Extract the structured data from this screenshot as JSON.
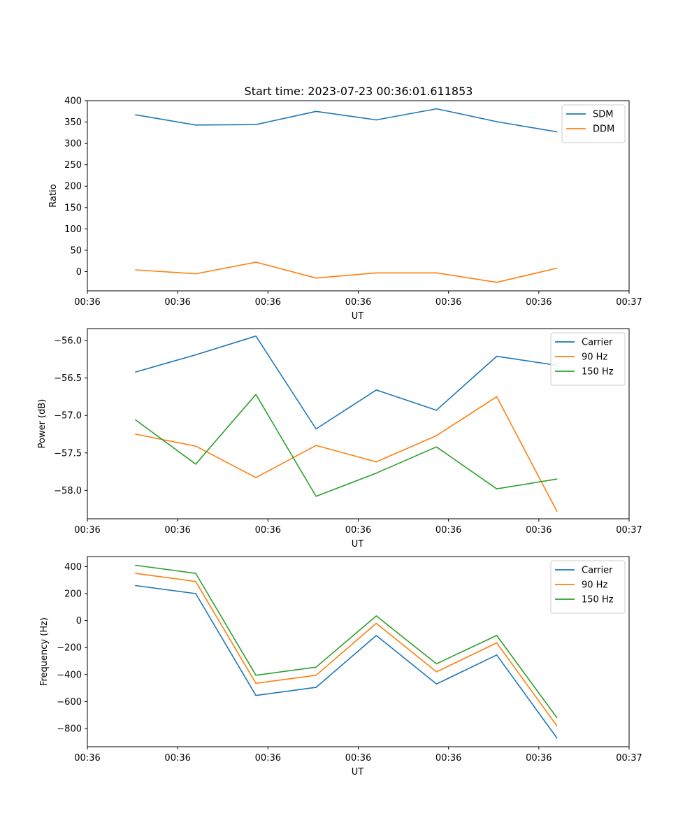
{
  "figure_title": "Start time: 2023-07-23 00:36:01.611853",
  "chart_data": [
    {
      "type": "line",
      "xlabel": "UT",
      "ylabel": "Ratio",
      "x_points": [
        1,
        2,
        3,
        4,
        5,
        6,
        7,
        8
      ],
      "xlim": [
        0.2,
        9.2
      ],
      "x_ticks": [
        {
          "value": 0.2,
          "label": "00:36"
        },
        {
          "value": 1.7,
          "label": "00:36"
        },
        {
          "value": 3.2,
          "label": "00:36"
        },
        {
          "value": 4.7,
          "label": "00:36"
        },
        {
          "value": 6.2,
          "label": "00:36"
        },
        {
          "value": 7.7,
          "label": "00:36"
        },
        {
          "value": 9.2,
          "label": "00:37"
        }
      ],
      "ylim": [
        -45,
        400
      ],
      "y_ticks": [
        {
          "value": 400,
          "label": "400"
        },
        {
          "value": 350,
          "label": "350"
        },
        {
          "value": 300,
          "label": "300"
        },
        {
          "value": 250,
          "label": "250"
        },
        {
          "value": 200,
          "label": "200"
        },
        {
          "value": 150,
          "label": "150"
        },
        {
          "value": 100,
          "label": "100"
        },
        {
          "value": 50,
          "label": "50"
        },
        {
          "value": 0,
          "label": "0"
        }
      ],
      "legend_position": "top-right",
      "series": [
        {
          "name": "SDM",
          "color": "#1f77b4",
          "values": [
            367,
            343,
            344,
            375,
            355,
            381,
            351,
            327
          ]
        },
        {
          "name": "DDM",
          "color": "#ff7f0e",
          "values": [
            4,
            -5,
            22,
            -15,
            -3,
            -3,
            -25,
            8
          ]
        }
      ]
    },
    {
      "type": "line",
      "xlabel": "UT",
      "ylabel": "Power (dB)",
      "x_points": [
        1,
        2,
        3,
        4,
        5,
        6,
        7,
        8
      ],
      "xlim": [
        0.2,
        9.2
      ],
      "x_ticks": [
        {
          "value": 0.2,
          "label": "00:36"
        },
        {
          "value": 1.7,
          "label": "00:36"
        },
        {
          "value": 3.2,
          "label": "00:36"
        },
        {
          "value": 4.7,
          "label": "00:36"
        },
        {
          "value": 6.2,
          "label": "00:36"
        },
        {
          "value": 7.7,
          "label": "00:36"
        },
        {
          "value": 9.2,
          "label": "00:37"
        }
      ],
      "ylim": [
        -58.38,
        -55.84
      ],
      "y_ticks": [
        {
          "value": -56.0,
          "label": "−56.0"
        },
        {
          "value": -56.5,
          "label": "−56.5"
        },
        {
          "value": -57.0,
          "label": "−57.0"
        },
        {
          "value": -57.5,
          "label": "−57.5"
        },
        {
          "value": -58.0,
          "label": "−58.0"
        }
      ],
      "legend_position": "top-right",
      "series": [
        {
          "name": "Carrier",
          "color": "#1f77b4",
          "values": [
            -56.42,
            -56.19,
            -55.94,
            -57.18,
            -56.66,
            -56.93,
            -56.21,
            -56.33
          ]
        },
        {
          "name": "90 Hz",
          "color": "#ff7f0e",
          "values": [
            -57.25,
            -57.41,
            -57.83,
            -57.4,
            -57.62,
            -57.27,
            -56.75,
            -58.28
          ]
        },
        {
          "name": "150 Hz",
          "color": "#2ca02c",
          "values": [
            -57.06,
            -57.65,
            -56.72,
            -58.08,
            -57.77,
            -57.42,
            -57.98,
            -57.85
          ]
        }
      ]
    },
    {
      "type": "line",
      "xlabel": "UT",
      "ylabel": "Frequency (Hz)",
      "x_points": [
        1,
        2,
        3,
        4,
        5,
        6,
        7,
        8
      ],
      "xlim": [
        0.2,
        9.2
      ],
      "x_ticks": [
        {
          "value": 0.2,
          "label": "00:36"
        },
        {
          "value": 1.7,
          "label": "00:36"
        },
        {
          "value": 3.2,
          "label": "00:36"
        },
        {
          "value": 4.7,
          "label": "00:36"
        },
        {
          "value": 6.2,
          "label": "00:36"
        },
        {
          "value": 7.7,
          "label": "00:36"
        },
        {
          "value": 9.2,
          "label": "00:37"
        }
      ],
      "ylim": [
        -935,
        475
      ],
      "y_ticks": [
        {
          "value": 400,
          "label": "400"
        },
        {
          "value": 200,
          "label": "200"
        },
        {
          "value": 0,
          "label": "0"
        },
        {
          "value": -200,
          "label": "−200"
        },
        {
          "value": -400,
          "label": "−400"
        },
        {
          "value": -600,
          "label": "−600"
        },
        {
          "value": -800,
          "label": "−800"
        }
      ],
      "legend_position": "top-right",
      "series": [
        {
          "name": "Carrier",
          "color": "#1f77b4",
          "values": [
            260,
            200,
            -555,
            -495,
            -110,
            -470,
            -255,
            -870
          ]
        },
        {
          "name": "90 Hz",
          "color": "#ff7f0e",
          "values": [
            350,
            290,
            -465,
            -405,
            -20,
            -380,
            -165,
            -780
          ]
        },
        {
          "name": "150 Hz",
          "color": "#2ca02c",
          "values": [
            410,
            350,
            -405,
            -345,
            35,
            -320,
            -110,
            -720
          ]
        }
      ]
    }
  ]
}
